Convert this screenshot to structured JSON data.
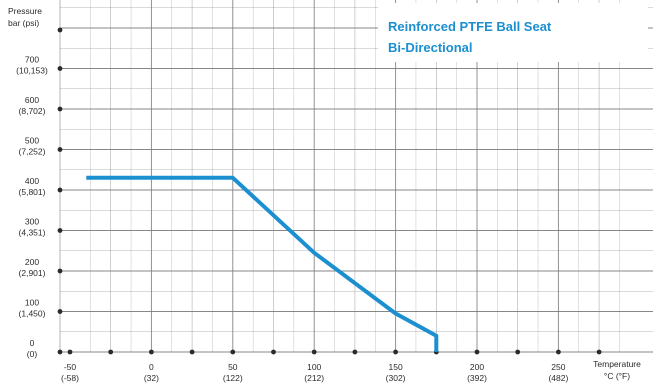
{
  "colors": {
    "series": "#1b8fd0",
    "title": "#1b8fd0",
    "grid": "#7a7a7a",
    "text": "#2b2b2b"
  },
  "chart_data": {
    "type": "line",
    "title_lines": [
      "Reinforced PTFE Ball Seat",
      "Bi-Directional"
    ],
    "ylabel_lines": [
      "Pressure",
      "bar (psi)"
    ],
    "xlabel_lines": [
      "Temperature",
      "°C (°F)"
    ],
    "xlim": [
      -50,
      300
    ],
    "ylim": [
      0,
      800
    ],
    "grid": true,
    "x_ticks": [
      {
        "value": -50,
        "label": "-50",
        "sub": "(-58)"
      },
      {
        "value": 0,
        "label": "0",
        "sub": "(32)"
      },
      {
        "value": 50,
        "label": "50",
        "sub": "(122)"
      },
      {
        "value": 100,
        "label": "100",
        "sub": "(212)"
      },
      {
        "value": 150,
        "label": "150",
        "sub": "(302)"
      },
      {
        "value": 200,
        "label": "200",
        "sub": "(392)"
      },
      {
        "value": 250,
        "label": "250",
        "sub": "(482)"
      }
    ],
    "y_ticks": [
      {
        "value": 0,
        "label": "0",
        "sub": "(0)"
      },
      {
        "value": 100,
        "label": "100",
        "sub": "(1,450)"
      },
      {
        "value": 200,
        "label": "200",
        "sub": "(2,901)"
      },
      {
        "value": 300,
        "label": "300",
        "sub": "(4,351)"
      },
      {
        "value": 400,
        "label": "400",
        "sub": "(5,801)"
      },
      {
        "value": 500,
        "label": "500",
        "sub": "(7,252)"
      },
      {
        "value": 600,
        "label": "600",
        "sub": "(8,702)"
      },
      {
        "value": 700,
        "label": "700",
        "sub": "(10,153)"
      }
    ],
    "series": [
      {
        "x": [
          -40,
          50,
          100,
          150,
          175,
          175
        ],
        "y": [
          430,
          430,
          245,
          95,
          40,
          0
        ]
      }
    ]
  }
}
